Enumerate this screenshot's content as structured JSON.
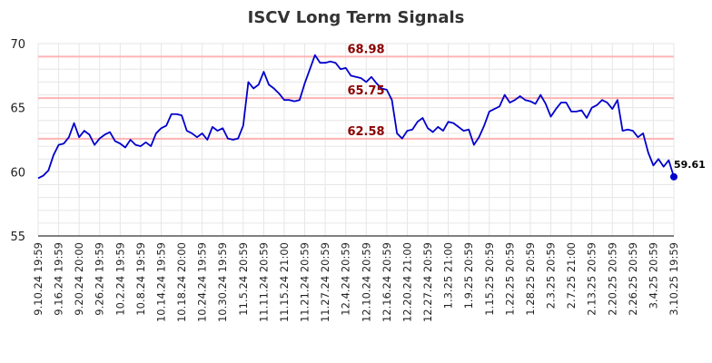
{
  "chart_data": {
    "type": "line",
    "title": "ISCV Long Term Signals",
    "xlabel": "",
    "ylabel": "",
    "ylim": [
      55,
      70
    ],
    "yticks": [
      55,
      60,
      65,
      70
    ],
    "grid": true,
    "xtick_labels": [
      "9.10.24 19:59",
      "9.16.24 19:59",
      "9.20.24 20:00",
      "9.26.24 19:59",
      "10.2.24 19:59",
      "10.8.24 19:59",
      "10.14.24 19:59",
      "10.18.24 20:00",
      "10.24.24 19:59",
      "10.30.24 19:59",
      "11.5.24 20:59",
      "11.11.24 20:59",
      "11.15.24 21:00",
      "11.21.24 20:59",
      "11.27.24 20:59",
      "12.4.24 20:59",
      "12.10.24 20:59",
      "12.16.24 20:59",
      "12.20.24 21:00",
      "12.27.24 20:59",
      "1.3.25 21:00",
      "1.9.25 20:59",
      "1.15.25 20:59",
      "1.22.25 20:59",
      "1.28.25 20:59",
      "2.3.25 20:59",
      "2.7.25 21:00",
      "2.13.25 20:59",
      "2.20.25 20:59",
      "2.26.25 20:59",
      "3.4.25 20:59",
      "3.10.25 19:59"
    ],
    "series": [
      {
        "color": "#0000cc",
        "values": [
          59.5,
          59.7,
          60.1,
          61.3,
          62.1,
          62.2,
          62.7,
          63.8,
          62.7,
          63.2,
          62.9,
          62.1,
          62.6,
          62.9,
          63.1,
          62.4,
          62.2,
          61.9,
          62.5,
          62.1,
          62.0,
          62.3,
          62.0,
          63.0,
          63.4,
          63.6,
          64.5,
          64.5,
          64.4,
          63.2,
          63.0,
          62.7,
          63.0,
          62.5,
          63.5,
          63.2,
          63.4,
          62.6,
          62.5,
          62.6,
          63.6,
          67.0,
          66.5,
          66.8,
          67.8,
          66.8,
          66.5,
          66.1,
          65.6,
          65.6,
          65.5,
          65.6,
          66.9,
          68.0,
          69.1,
          68.5,
          68.5,
          68.6,
          68.5,
          68.0,
          68.1,
          67.5,
          67.4,
          67.3,
          67.0,
          67.4,
          66.9,
          66.5,
          66.4,
          65.6,
          63.0,
          62.6,
          63.2,
          63.3,
          63.9,
          64.2,
          63.4,
          63.1,
          63.5,
          63.2,
          63.9,
          63.8,
          63.5,
          63.2,
          63.3,
          62.1,
          62.7,
          63.6,
          64.7,
          64.9,
          65.1,
          66.0,
          65.4,
          65.6,
          65.9,
          65.6,
          65.5,
          65.3,
          66.0,
          65.3,
          64.3,
          64.9,
          65.4,
          65.4,
          64.7,
          64.7,
          64.8,
          64.2,
          65.0,
          65.2,
          65.6,
          65.4,
          64.9,
          65.6,
          63.2,
          63.3,
          63.2,
          62.7,
          63.0,
          61.5,
          60.5,
          61.0,
          60.4,
          60.9,
          59.61
        ]
      }
    ],
    "hlines": [
      {
        "value": 68.98,
        "label": "68.98",
        "color": "#ffb3b3"
      },
      {
        "value": 65.75,
        "label": "65.75",
        "color": "#ffb3b3"
      },
      {
        "value": 62.58,
        "label": "62.58",
        "color": "#ffb3b3"
      }
    ],
    "last_point": {
      "value": 59.61,
      "label": "59.61"
    }
  }
}
